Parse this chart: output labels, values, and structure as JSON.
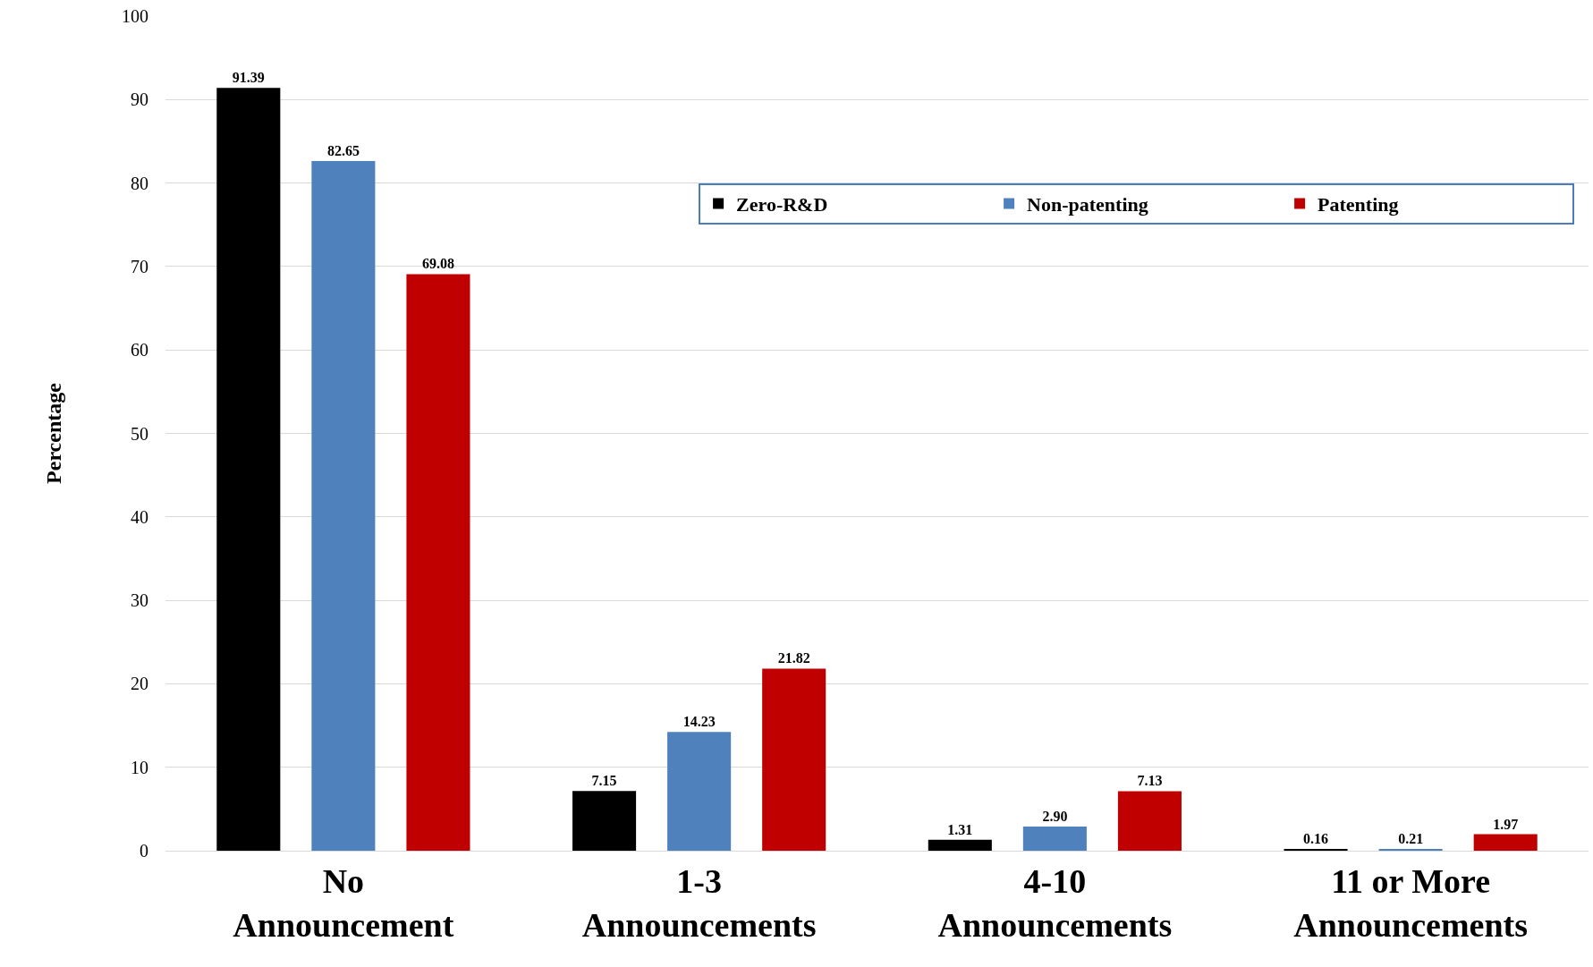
{
  "chart_data": {
    "type": "bar",
    "ylabel": "Percentage",
    "categories": [
      "No Announcement",
      "1-3 Announcements",
      "4-10 Announcements",
      "11 or More Announcements"
    ],
    "series": [
      {
        "name": "Zero-R&D",
        "color": "#000000",
        "values": [
          91.39,
          7.15,
          1.31,
          0.16
        ]
      },
      {
        "name": "Non-patenting",
        "color": "#4f81bd",
        "values": [
          82.65,
          14.23,
          2.9,
          0.21
        ]
      },
      {
        "name": "Patenting",
        "color": "#c00000",
        "values": [
          69.08,
          21.82,
          7.13,
          1.97
        ]
      }
    ],
    "value_labels": [
      [
        "91.39",
        "7.15",
        "1.31",
        "0.16"
      ],
      [
        "82.65",
        "14.23",
        "2.90",
        "0.21"
      ],
      [
        "69.08",
        "21.82",
        "7.13",
        "1.97"
      ]
    ],
    "ylim": [
      0,
      100
    ],
    "yticks": [
      0,
      10,
      20,
      30,
      40,
      50,
      60,
      70,
      80,
      90,
      100
    ],
    "grid": "y",
    "legend": "top right"
  }
}
